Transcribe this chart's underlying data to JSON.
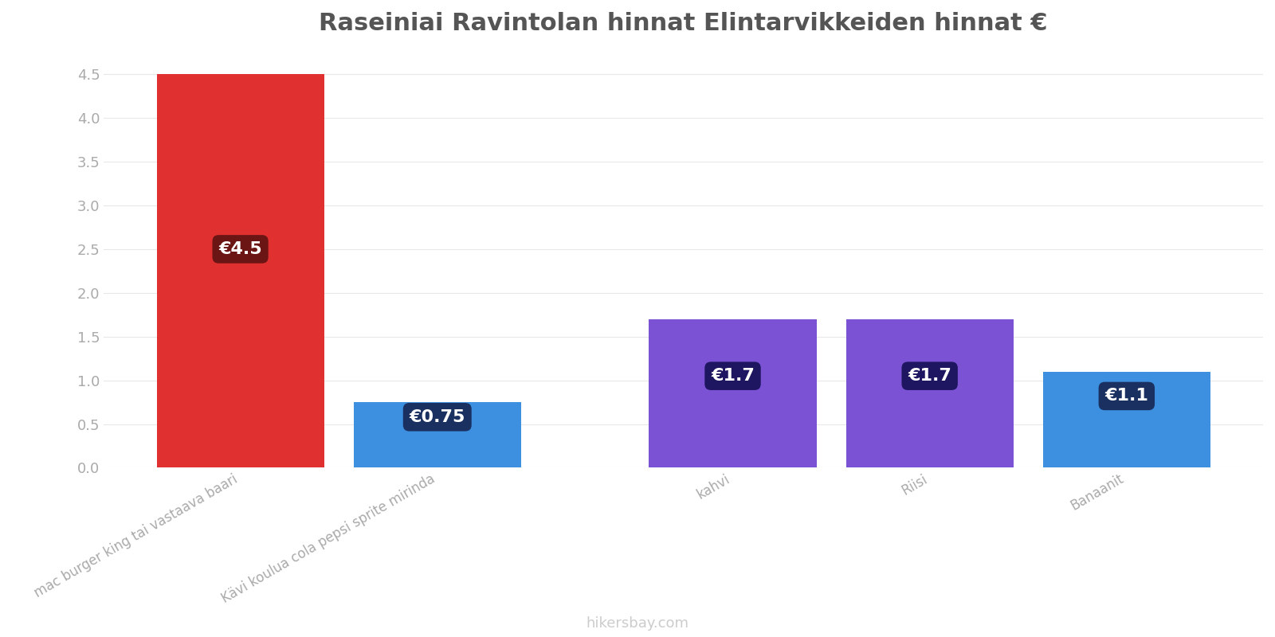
{
  "title": "Raseiniai Ravintolan hinnat Elintarvikkeiden hinnat €",
  "categories": [
    "mac burger king tai vastaava baari",
    "Kävi koulua cola pepsi sprite mirinda",
    "kahvi",
    "Riisi",
    "Banaanit"
  ],
  "values": [
    4.5,
    0.75,
    1.7,
    1.7,
    1.1
  ],
  "bar_colors": [
    "#e03030",
    "#3d8fe0",
    "#7b52d4",
    "#7b52d4",
    "#3d8fe0"
  ],
  "label_bg_colors": [
    "#6b1515",
    "#1a3060",
    "#1e1660",
    "#1e1660",
    "#1a3060"
  ],
  "labels": [
    "€4.5",
    "€0.75",
    "€1.7",
    "€1.7",
    "€1.1"
  ],
  "label_y_positions": [
    2.5,
    0.58,
    1.05,
    1.05,
    0.82
  ],
  "x_positions": [
    0,
    1,
    2.5,
    3.5,
    4.5
  ],
  "ylim": [
    0,
    4.75
  ],
  "yticks": [
    0,
    0.5,
    1.0,
    1.5,
    2.0,
    2.5,
    3.0,
    3.5,
    4.0,
    4.5
  ],
  "background_color": "#ffffff",
  "title_fontsize": 22,
  "bar_width": 0.85,
  "watermark": "hikersbay.com",
  "tick_label_fontsize": 12,
  "tick_label_color": "#aaaaaa",
  "ytick_color": "#aaaaaa",
  "grid_color": "#e8e8e8",
  "label_fontsize": 16
}
